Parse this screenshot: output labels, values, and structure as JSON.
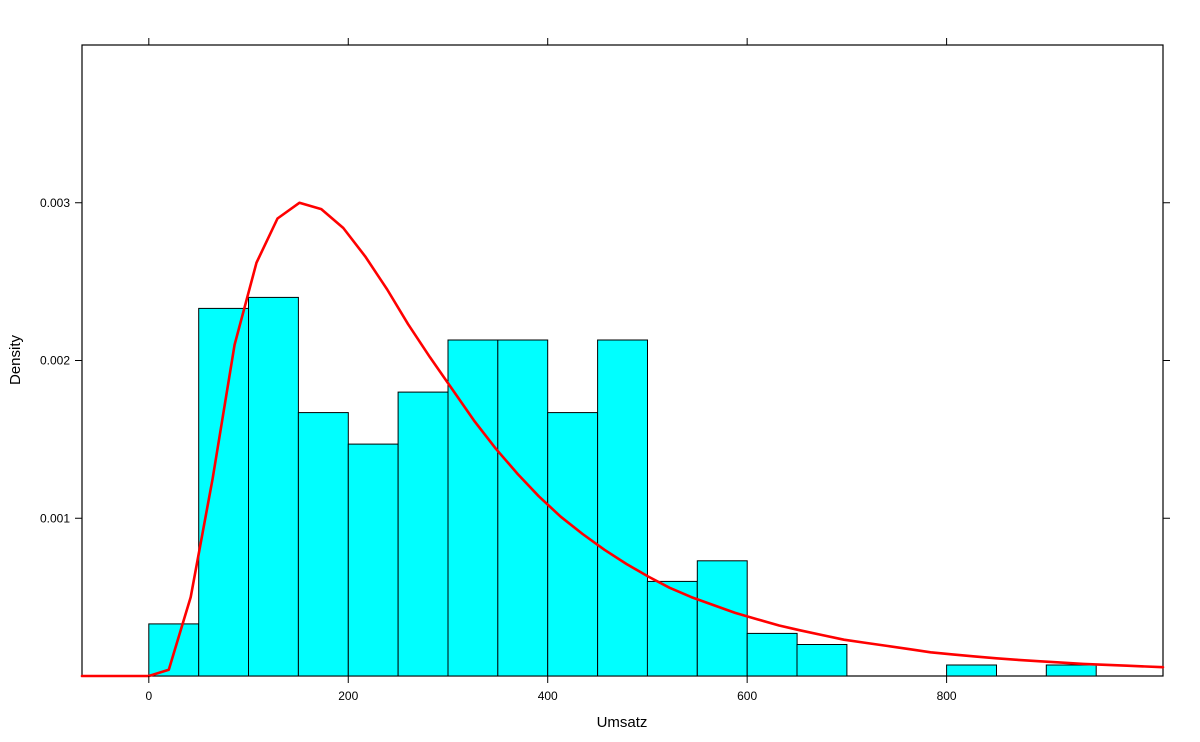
{
  "chart_data": {
    "type": "bar",
    "subtype": "histogram-with-density-curve",
    "xlabel": "Umsatz",
    "ylabel": "Density",
    "xlim": [
      -67,
      1017
    ],
    "ylim": [
      0,
      0.004
    ],
    "x_ticks": [
      0,
      200,
      400,
      600,
      800
    ],
    "x_tick_labels": [
      "0",
      "200",
      "400",
      "600",
      "800"
    ],
    "y_ticks": [
      0.001,
      0.002,
      0.003
    ],
    "y_tick_labels": [
      "0.001",
      "0.002",
      "0.003"
    ],
    "grid": false,
    "bins": [
      {
        "start": 0,
        "end": 50,
        "density": 0.00033
      },
      {
        "start": 50,
        "end": 100,
        "density": 0.00233
      },
      {
        "start": 100,
        "end": 150,
        "density": 0.0024
      },
      {
        "start": 150,
        "end": 200,
        "density": 0.00167
      },
      {
        "start": 200,
        "end": 250,
        "density": 0.00147
      },
      {
        "start": 250,
        "end": 300,
        "density": 0.0018
      },
      {
        "start": 300,
        "end": 350,
        "density": 0.00213
      },
      {
        "start": 350,
        "end": 400,
        "density": 0.00213
      },
      {
        "start": 400,
        "end": 450,
        "density": 0.00167
      },
      {
        "start": 450,
        "end": 500,
        "density": 0.00213
      },
      {
        "start": 500,
        "end": 550,
        "density": 0.0006
      },
      {
        "start": 550,
        "end": 600,
        "density": 0.00073
      },
      {
        "start": 600,
        "end": 650,
        "density": 0.00027
      },
      {
        "start": 650,
        "end": 700,
        "density": 0.0002
      },
      {
        "start": 700,
        "end": 750,
        "density": 0
      },
      {
        "start": 750,
        "end": 800,
        "density": 0
      },
      {
        "start": 800,
        "end": 850,
        "density": 7e-05
      },
      {
        "start": 850,
        "end": 900,
        "density": 0
      },
      {
        "start": 900,
        "end": 950,
        "density": 7e-05
      }
    ],
    "density_curve": {
      "x": [
        -67,
        0,
        20,
        42,
        64,
        86,
        108,
        129,
        151,
        173,
        195,
        217,
        239,
        260,
        282,
        304,
        326,
        348,
        370,
        391,
        413,
        435,
        457,
        479,
        501,
        522,
        544,
        566,
        588,
        610,
        632,
        653,
        675,
        697,
        719,
        741,
        763,
        784,
        806,
        828,
        850,
        872,
        894,
        915,
        937,
        959,
        981,
        1017
      ],
      "y": [
        0,
        0,
        4e-05,
        0.0005,
        0.00125,
        0.0021,
        0.00262,
        0.0029,
        0.003,
        0.00296,
        0.00284,
        0.00266,
        0.00245,
        0.00223,
        0.00202,
        0.00182,
        0.00162,
        0.00144,
        0.00128,
        0.00114,
        0.00101,
        0.0009,
        0.0008,
        0.00071,
        0.00063,
        0.00056,
        0.0005,
        0.00045,
        0.0004,
        0.00036,
        0.00032,
        0.00029,
        0.00026,
        0.00023,
        0.00021,
        0.00019,
        0.00017,
        0.00015,
        0.000137,
        0.000124,
        0.000112,
        0.000102,
        9.3e-05,
        8.5e-05,
        7.7e-05,
        7.1e-05,
        6.5e-05,
        5.6e-05
      ]
    },
    "colors": {
      "bar_fill": "#00ffff",
      "bar_stroke": "#000000",
      "curve": "#ff0000"
    }
  }
}
